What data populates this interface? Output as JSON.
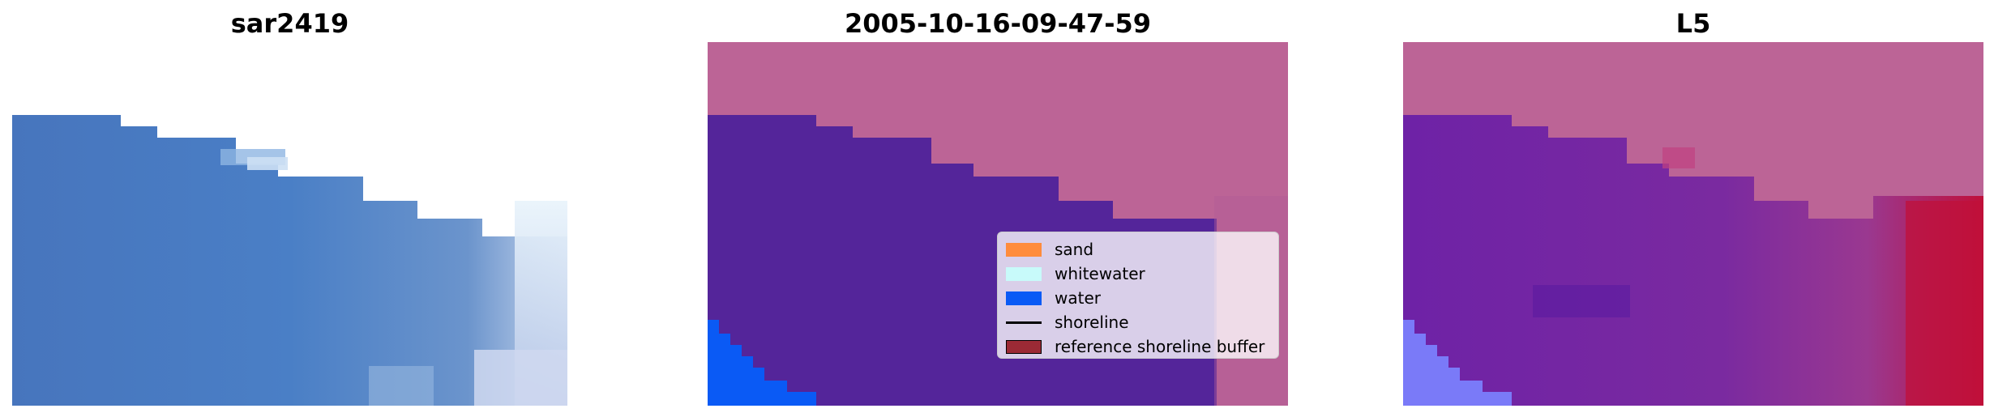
{
  "panels": [
    {
      "title": "sar2419",
      "image": "rgb satellite image tile"
    },
    {
      "title": "2005-10-16-09-47-59",
      "image": "classified image"
    },
    {
      "title": "L5",
      "image": "probability overlay image"
    }
  ],
  "legend": {
    "items": [
      {
        "label": "sand",
        "kind": "patch",
        "color": "#ff8c3c"
      },
      {
        "label": "whitewater",
        "kind": "patch",
        "color": "#c8fafa"
      },
      {
        "label": "water",
        "kind": "patch",
        "color": "#0a5af5"
      },
      {
        "label": "shoreline",
        "kind": "line",
        "color": "#000000"
      },
      {
        "label": "reference shoreline buffer",
        "kind": "patch",
        "color": "#9b2a35"
      }
    ]
  },
  "colors": {
    "background": "#ffffff",
    "nodata": "#bc6496",
    "class_water": "#54259a",
    "sea_blue": "#0a5af5",
    "rgb_water": "#4a7ac0",
    "prob_purple": "#7a2aa0",
    "prob_red": "#c0103a"
  }
}
